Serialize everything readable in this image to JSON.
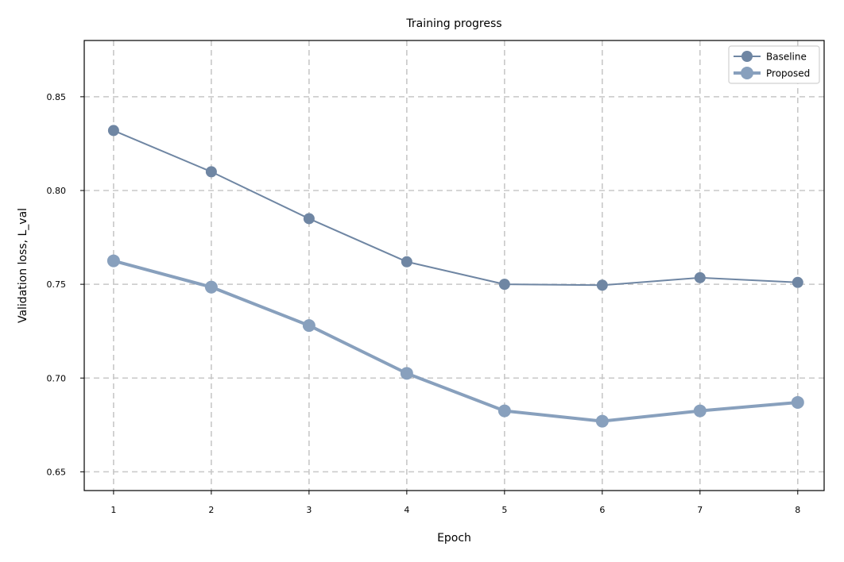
{
  "chart_data": {
    "type": "line",
    "title": "Training progress",
    "xlabel": "Epoch",
    "ylabel": "Validation loss, L_val",
    "x": [
      1,
      2,
      3,
      4,
      5,
      6,
      7,
      8
    ],
    "xticks": [
      "1",
      "2",
      "3",
      "4",
      "5",
      "6",
      "7",
      "8"
    ],
    "yticks": [
      "0.65",
      "0.70",
      "0.75",
      "0.80",
      "0.85"
    ],
    "xlim": [
      0.7,
      8.27
    ],
    "ylim": [
      0.64,
      0.88
    ],
    "grid": true,
    "legend_position": "top-right",
    "series": [
      {
        "name": "Baseline",
        "color": "#6f86a3",
        "values": [
          0.832,
          0.81,
          0.785,
          0.762,
          0.75,
          0.7495,
          0.7535,
          0.751
        ]
      },
      {
        "name": "Proposed",
        "color": "#88a0bd",
        "values": [
          0.7625,
          0.7485,
          0.728,
          0.7025,
          0.6825,
          0.677,
          0.6825,
          0.687
        ]
      }
    ]
  }
}
